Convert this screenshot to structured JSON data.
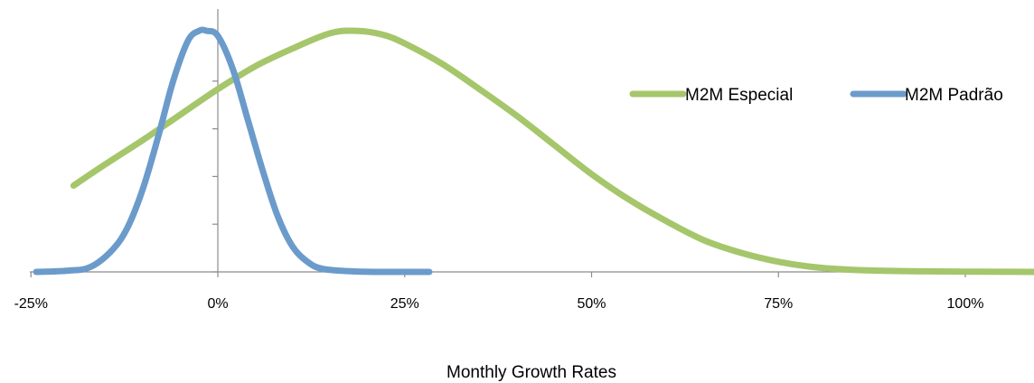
{
  "chart_data": {
    "type": "line",
    "title": "",
    "xlabel": "Monthly Growth Rates",
    "ylabel": "",
    "xlim": [
      -25,
      110
    ],
    "ylim": [
      0,
      1
    ],
    "x_ticks": [
      -25,
      0,
      25,
      50,
      75,
      100
    ],
    "x_tick_labels": [
      "-25%",
      "0%",
      "25%",
      "50%",
      "75%",
      "100%"
    ],
    "y_tick_count": 6,
    "y_tick_labels_shown": false,
    "grid": false,
    "legend_position": "right",
    "series": [
      {
        "name": "M2M Especial",
        "color": "#A5C66B",
        "x": [
          -19.3,
          -15,
          -10,
          -5,
          0,
          5,
          10,
          15,
          18.5,
          22,
          25,
          30,
          35,
          40,
          45,
          50,
          55,
          60,
          65,
          70,
          75,
          80,
          85,
          90,
          95,
          100,
          105,
          110
        ],
        "y": [
          0.34,
          0.425,
          0.52,
          0.62,
          0.72,
          0.81,
          0.88,
          0.94,
          0.95,
          0.935,
          0.9,
          0.82,
          0.72,
          0.615,
          0.5,
          0.385,
          0.285,
          0.2,
          0.125,
          0.075,
          0.04,
          0.018,
          0.008,
          0.004,
          0.002,
          0.001,
          0.0005,
          0.0
        ]
      },
      {
        "name": "M2M Padrão",
        "color": "#6B9BCB",
        "x": [
          -24.3,
          -20,
          -17,
          -14,
          -12,
          -10,
          -8,
          -6,
          -4,
          -2.5,
          -1.5,
          0,
          2,
          4,
          6,
          8,
          10,
          12,
          14,
          18,
          22,
          28.3
        ],
        "y": [
          0.0,
          0.005,
          0.02,
          0.09,
          0.18,
          0.33,
          0.53,
          0.75,
          0.91,
          0.95,
          0.95,
          0.93,
          0.8,
          0.6,
          0.4,
          0.22,
          0.1,
          0.04,
          0.012,
          0.002,
          0.0,
          0.0
        ]
      }
    ]
  }
}
